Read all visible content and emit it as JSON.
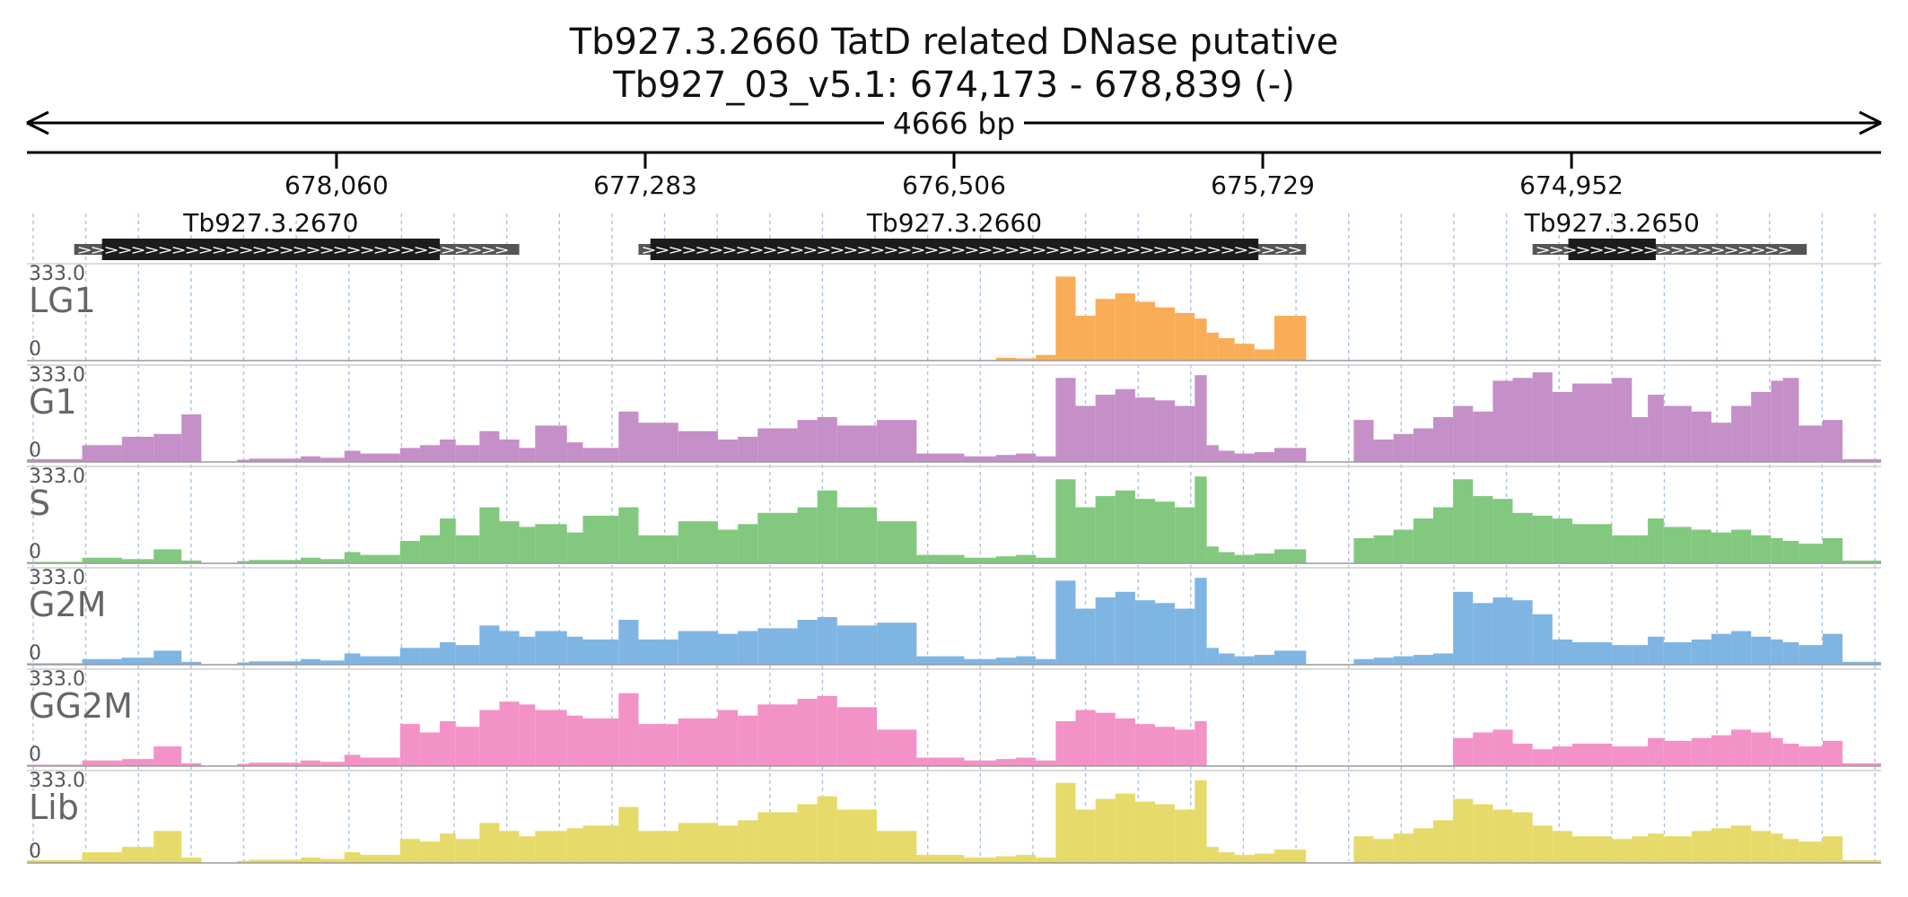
{
  "chart_data": {
    "type": "area",
    "title": "Tb927.3.2660  TatD related DNase  putative",
    "subtitle": "Tb927_03_v5.1: 674,173 - 678,839 (-)",
    "span_label": "4666 bp",
    "region": {
      "start": 674173,
      "end": 678839,
      "strand": "-"
    },
    "ticks": [
      "678,060",
      "677,283",
      "676,506",
      "675,729",
      "674,952"
    ],
    "tick_values": [
      678060,
      677283,
      676506,
      675729,
      674952
    ],
    "genes": [
      {
        "name": "Tb927.3.2670",
        "start": 677600,
        "end": 678720,
        "cds_start": 677800,
        "cds_end": 678650
      },
      {
        "name": "Tb927.3.2660",
        "start": 675620,
        "end": 677300,
        "cds_start": 675740,
        "cds_end": 677270
      },
      {
        "name": "Tb927.3.2650",
        "start": 674360,
        "end": 675050,
        "cds_start": 674740,
        "cds_end": 674960
      }
    ],
    "y_range": [
      0,
      333.0
    ],
    "y_max_label": "333.0",
    "y_min_label": "0",
    "grid": true,
    "bin_edges": [
      678839,
      678700,
      678600,
      678520,
      678450,
      678400,
      678310,
      678280,
      678150,
      678100,
      678040,
      678000,
      677900,
      677850,
      677800,
      677760,
      677700,
      677650,
      677600,
      677560,
      677480,
      677440,
      677350,
      677300,
      677200,
      677100,
      677050,
      677000,
      676900,
      676850,
      676800,
      676700,
      676600,
      676480,
      676400,
      676350,
      676300,
      676250,
      676200,
      676150,
      676100,
      676050,
      676000,
      675950,
      675900,
      675870,
      675840,
      675800,
      675750,
      675700,
      675620,
      675500,
      675450,
      675400,
      675350,
      675300,
      675250,
      675200,
      675150,
      675100,
      675050,
      675000,
      674950,
      674850,
      674800,
      674760,
      674720,
      674650,
      674600,
      674550,
      674500,
      674450,
      674420,
      674380,
      674320,
      674270,
      674173
    ],
    "series": [
      {
        "name": "LG1",
        "color": "#f9ad57",
        "values": [
          0,
          0,
          0,
          0,
          0,
          0,
          0,
          0,
          0,
          0,
          0,
          0,
          0,
          0,
          0,
          0,
          0,
          0,
          0,
          0,
          0,
          0,
          0,
          0,
          0,
          0,
          0,
          0,
          0,
          0,
          0,
          0,
          0,
          0,
          10,
          8,
          20,
          300,
          160,
          220,
          240,
          210,
          190,
          170,
          150,
          100,
          80,
          60,
          40,
          160,
          0,
          0,
          0,
          0,
          0,
          0,
          0,
          0,
          0,
          0,
          0,
          0,
          0,
          0,
          0,
          0,
          0,
          0,
          0,
          0,
          0,
          0,
          0,
          0,
          0,
          0
        ]
      },
      {
        "name": "G1",
        "color": "#c58fc8",
        "values": [
          10,
          60,
          90,
          100,
          170,
          0,
          8,
          12,
          20,
          15,
          40,
          30,
          50,
          60,
          80,
          60,
          110,
          80,
          50,
          130,
          70,
          50,
          180,
          140,
          110,
          80,
          90,
          120,
          150,
          160,
          130,
          150,
          30,
          20,
          25,
          30,
          20,
          300,
          200,
          240,
          260,
          230,
          220,
          200,
          310,
          60,
          40,
          30,
          35,
          50,
          0,
          150,
          80,
          100,
          120,
          160,
          200,
          180,
          290,
          300,
          320,
          250,
          280,
          300,
          160,
          240,
          200,
          180,
          140,
          200,
          250,
          290,
          300,
          130,
          150,
          10
        ]
      },
      {
        "name": "S",
        "color": "#82c87f",
        "values": [
          5,
          20,
          15,
          50,
          10,
          0,
          8,
          12,
          20,
          15,
          40,
          30,
          80,
          100,
          160,
          100,
          200,
          150,
          130,
          140,
          110,
          170,
          200,
          100,
          150,
          120,
          140,
          180,
          200,
          260,
          200,
          150,
          30,
          20,
          25,
          30,
          20,
          300,
          200,
          240,
          260,
          230,
          220,
          200,
          310,
          60,
          40,
          30,
          35,
          50,
          0,
          90,
          100,
          120,
          160,
          200,
          300,
          240,
          230,
          180,
          170,
          160,
          140,
          100,
          100,
          160,
          130,
          120,
          110,
          120,
          100,
          90,
          80,
          70,
          90,
          10
        ]
      },
      {
        "name": "G2M",
        "color": "#7fb5e3",
        "values": [
          5,
          20,
          25,
          50,
          10,
          0,
          8,
          12,
          20,
          15,
          40,
          30,
          60,
          60,
          80,
          70,
          140,
          120,
          100,
          120,
          100,
          90,
          160,
          90,
          120,
          110,
          120,
          130,
          160,
          170,
          140,
          150,
          30,
          20,
          25,
          30,
          20,
          300,
          200,
          240,
          260,
          230,
          220,
          200,
          310,
          60,
          40,
          30,
          35,
          50,
          0,
          20,
          25,
          30,
          35,
          40,
          260,
          220,
          240,
          230,
          180,
          90,
          80,
          70,
          70,
          100,
          80,
          90,
          110,
          120,
          100,
          90,
          80,
          70,
          110,
          10
        ]
      },
      {
        "name": "GG2M",
        "color": "#f292c7",
        "values": [
          5,
          20,
          25,
          70,
          10,
          0,
          8,
          12,
          20,
          15,
          40,
          30,
          150,
          120,
          160,
          140,
          200,
          230,
          220,
          200,
          180,
          170,
          260,
          150,
          170,
          200,
          180,
          220,
          240,
          250,
          210,
          130,
          30,
          20,
          25,
          30,
          20,
          160,
          200,
          190,
          170,
          150,
          140,
          130,
          160,
          0,
          0,
          0,
          0,
          0,
          0,
          0,
          0,
          0,
          0,
          0,
          100,
          120,
          130,
          80,
          60,
          70,
          80,
          70,
          70,
          100,
          90,
          100,
          110,
          130,
          120,
          100,
          80,
          70,
          90,
          10
        ]
      },
      {
        "name": "Lib",
        "color": "#e6da6b",
        "values": [
          10,
          40,
          60,
          120,
          20,
          0,
          8,
          12,
          20,
          15,
          40,
          30,
          90,
          80,
          110,
          90,
          150,
          120,
          100,
          120,
          130,
          140,
          210,
          120,
          150,
          140,
          160,
          190,
          220,
          250,
          200,
          120,
          30,
          20,
          25,
          30,
          20,
          300,
          200,
          240,
          260,
          230,
          220,
          200,
          310,
          60,
          40,
          30,
          35,
          50,
          0,
          100,
          90,
          110,
          130,
          160,
          240,
          220,
          200,
          190,
          140,
          120,
          100,
          90,
          100,
          110,
          100,
          120,
          130,
          140,
          120,
          110,
          90,
          80,
          100,
          10
        ]
      }
    ]
  }
}
